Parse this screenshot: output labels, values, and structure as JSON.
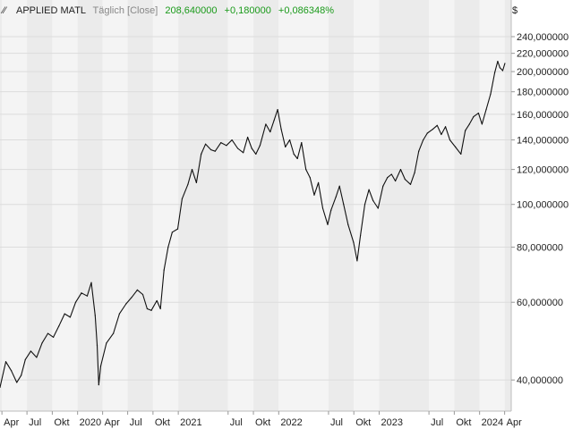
{
  "header": {
    "name": "APPLIED MATL",
    "period": "Täglich [Close]",
    "last": "208,640000",
    "change": "+0,180000",
    "change_pct": "+0,086348%"
  },
  "colors": {
    "positive": "#1a9a1a",
    "muted": "#888888",
    "line": "#111111",
    "band_light": "#f4f4f4",
    "band_dark": "#ebebeb",
    "grid": "#dcdcdc"
  },
  "chart_data": {
    "type": "line",
    "title": "APPLIED MATL",
    "y_unit": "$",
    "y_scale": "log",
    "ylim": [
      34,
      255
    ],
    "xlim": [
      "2019-03-25",
      "2024-04-25"
    ],
    "grid": true,
    "y_ticks": [
      {
        "value": 40,
        "label": "40,000000"
      },
      {
        "value": 60,
        "label": "60,000000"
      },
      {
        "value": 80,
        "label": "80,000000"
      },
      {
        "value": 100,
        "label": "100,000000"
      },
      {
        "value": 120,
        "label": "120,000000"
      },
      {
        "value": 140,
        "label": "140,000000"
      },
      {
        "value": 160,
        "label": "160,000000"
      },
      {
        "value": 180,
        "label": "180,000000"
      },
      {
        "value": 200,
        "label": "200,000000"
      },
      {
        "value": 220,
        "label": "220,000000"
      },
      {
        "value": 240,
        "label": "240,000000"
      }
    ],
    "x_ticks": [
      {
        "date": "2019-04-01",
        "label": "Apr"
      },
      {
        "date": "2019-07-01",
        "label": "Jul"
      },
      {
        "date": "2019-10-01",
        "label": "Okt"
      },
      {
        "date": "2020-01-01",
        "label": "2020"
      },
      {
        "date": "2020-04-01",
        "label": "Apr"
      },
      {
        "date": "2020-07-01",
        "label": "Jul"
      },
      {
        "date": "2020-10-01",
        "label": "Okt"
      },
      {
        "date": "2021-01-01",
        "label": "2021"
      },
      {
        "date": "2021-07-01",
        "label": "Jul"
      },
      {
        "date": "2021-10-01",
        "label": "Okt"
      },
      {
        "date": "2022-01-01",
        "label": "2022"
      },
      {
        "date": "2022-07-01",
        "label": "Jul"
      },
      {
        "date": "2022-10-01",
        "label": "Okt"
      },
      {
        "date": "2023-01-01",
        "label": "2023"
      },
      {
        "date": "2023-07-01",
        "label": "Jul"
      },
      {
        "date": "2023-10-01",
        "label": "Okt"
      },
      {
        "date": "2024-01-01",
        "label": "2024"
      },
      {
        "date": "2024-04-01",
        "label": "Apr"
      }
    ],
    "series": [
      {
        "name": "APPLIED MATL",
        "points": [
          [
            "2019-03-25",
            38.5
          ],
          [
            "2019-04-15",
            44.0
          ],
          [
            "2019-05-05",
            42.0
          ],
          [
            "2019-05-25",
            39.5
          ],
          [
            "2019-06-10",
            41.0
          ],
          [
            "2019-06-25",
            44.5
          ],
          [
            "2019-07-15",
            46.5
          ],
          [
            "2019-08-05",
            45.0
          ],
          [
            "2019-08-25",
            48.5
          ],
          [
            "2019-09-15",
            51.0
          ],
          [
            "2019-10-05",
            50.0
          ],
          [
            "2019-10-25",
            53.0
          ],
          [
            "2019-11-15",
            56.5
          ],
          [
            "2019-12-05",
            55.5
          ],
          [
            "2019-12-25",
            60.0
          ],
          [
            "2020-01-15",
            63.0
          ],
          [
            "2020-02-05",
            62.0
          ],
          [
            "2020-02-20",
            66.5
          ],
          [
            "2020-03-05",
            56.0
          ],
          [
            "2020-03-12",
            48.0
          ],
          [
            "2020-03-18",
            39.0
          ],
          [
            "2020-03-25",
            43.0
          ],
          [
            "2020-04-15",
            48.5
          ],
          [
            "2020-05-10",
            51.0
          ],
          [
            "2020-06-01",
            56.5
          ],
          [
            "2020-06-25",
            59.5
          ],
          [
            "2020-07-15",
            61.5
          ],
          [
            "2020-08-05",
            64.0
          ],
          [
            "2020-08-25",
            62.5
          ],
          [
            "2020-09-10",
            58.0
          ],
          [
            "2020-09-25",
            57.5
          ],
          [
            "2020-10-15",
            60.5
          ],
          [
            "2020-10-28",
            58.0
          ],
          [
            "2020-11-10",
            71.0
          ],
          [
            "2020-11-25",
            80.0
          ],
          [
            "2020-12-10",
            86.5
          ],
          [
            "2020-12-30",
            88.0
          ],
          [
            "2021-01-15",
            103.0
          ],
          [
            "2021-02-05",
            111.0
          ],
          [
            "2021-02-20",
            120.0
          ],
          [
            "2021-03-08",
            112.0
          ],
          [
            "2021-03-25",
            130.0
          ],
          [
            "2021-04-10",
            137.0
          ],
          [
            "2021-04-30",
            133.0
          ],
          [
            "2021-05-15",
            132.0
          ],
          [
            "2021-06-05",
            138.0
          ],
          [
            "2021-06-25",
            136.0
          ],
          [
            "2021-07-15",
            140.0
          ],
          [
            "2021-08-05",
            134.0
          ],
          [
            "2021-08-25",
            131.0
          ],
          [
            "2021-09-10",
            142.0
          ],
          [
            "2021-09-25",
            134.0
          ],
          [
            "2021-10-10",
            130.0
          ],
          [
            "2021-10-25",
            136.0
          ],
          [
            "2021-11-15",
            152.0
          ],
          [
            "2021-12-01",
            146.0
          ],
          [
            "2021-12-15",
            155.0
          ],
          [
            "2021-12-28",
            164.0
          ],
          [
            "2022-01-10",
            148.0
          ],
          [
            "2022-01-25",
            135.0
          ],
          [
            "2022-02-10",
            140.0
          ],
          [
            "2022-02-25",
            130.0
          ],
          [
            "2022-03-10",
            127.0
          ],
          [
            "2022-03-25",
            138.0
          ],
          [
            "2022-04-10",
            120.0
          ],
          [
            "2022-04-25",
            115.0
          ],
          [
            "2022-05-10",
            105.0
          ],
          [
            "2022-05-25",
            112.0
          ],
          [
            "2022-06-10",
            98.0
          ],
          [
            "2022-06-28",
            90.0
          ],
          [
            "2022-07-10",
            97.0
          ],
          [
            "2022-07-28",
            104.0
          ],
          [
            "2022-08-10",
            110.0
          ],
          [
            "2022-08-25",
            100.0
          ],
          [
            "2022-09-10",
            90.0
          ],
          [
            "2022-09-30",
            82.0
          ],
          [
            "2022-10-13",
            74.5
          ],
          [
            "2022-10-25",
            85.0
          ],
          [
            "2022-11-10",
            100.0
          ],
          [
            "2022-11-25",
            108.0
          ],
          [
            "2022-12-10",
            102.0
          ],
          [
            "2022-12-28",
            98.0
          ],
          [
            "2023-01-15",
            110.0
          ],
          [
            "2023-01-31",
            115.0
          ],
          [
            "2023-02-15",
            117.0
          ],
          [
            "2023-03-01",
            113.0
          ],
          [
            "2023-03-20",
            120.0
          ],
          [
            "2023-04-05",
            114.0
          ],
          [
            "2023-04-25",
            111.0
          ],
          [
            "2023-05-10",
            118.0
          ],
          [
            "2023-05-25",
            132.0
          ],
          [
            "2023-06-10",
            140.0
          ],
          [
            "2023-06-25",
            145.0
          ],
          [
            "2023-07-15",
            148.0
          ],
          [
            "2023-07-31",
            151.0
          ],
          [
            "2023-08-15",
            144.0
          ],
          [
            "2023-08-30",
            150.0
          ],
          [
            "2023-09-15",
            140.0
          ],
          [
            "2023-10-05",
            135.0
          ],
          [
            "2023-10-25",
            130.0
          ],
          [
            "2023-11-10",
            147.0
          ],
          [
            "2023-11-25",
            152.0
          ],
          [
            "2023-12-10",
            158.0
          ],
          [
            "2023-12-28",
            161.0
          ],
          [
            "2024-01-10",
            152.0
          ],
          [
            "2024-01-25",
            164.0
          ],
          [
            "2024-02-10",
            178.0
          ],
          [
            "2024-02-25",
            199.0
          ],
          [
            "2024-03-07",
            211.0
          ],
          [
            "2024-03-15",
            204.0
          ],
          [
            "2024-03-25",
            201.0
          ],
          [
            "2024-04-02",
            208.64
          ]
        ]
      }
    ]
  }
}
